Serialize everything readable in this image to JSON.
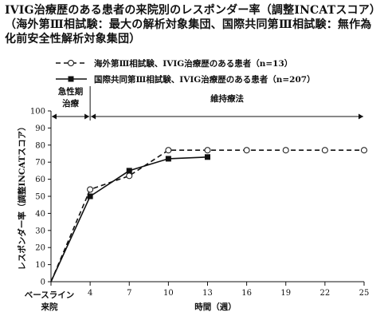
{
  "chart_data": {
    "type": "line",
    "title": "IVIG治療歴のある患者の来院別のレスポンダー率（調整INCATスコア）（海外第Ⅲ相試験：最大の解析対象集団、国際共同第Ⅲ相試験：無作為化前安全性解析対象集団）",
    "xlabel": "時間（週）",
    "ylabel": "レスポンダー率（調整INCATスコア）",
    "x_ticks": [
      "ベースライン\n来院",
      "4",
      "7",
      "10",
      "13",
      "16",
      "19",
      "22",
      "25"
    ],
    "x_tick_values": [
      0,
      4,
      7,
      10,
      13,
      16,
      19,
      22,
      25
    ],
    "xlim": [
      1,
      25
    ],
    "ylim": [
      0,
      100
    ],
    "y_ticks": [
      0,
      10,
      20,
      30,
      40,
      50,
      60,
      70,
      80,
      90,
      100
    ],
    "legend_position": "top-left",
    "phases": [
      {
        "label": "急性期\n治療",
        "x_start": 1,
        "x_end": 4
      },
      {
        "label": "維持療法",
        "x_start": 4,
        "x_end": 25
      }
    ],
    "series": [
      {
        "name": "海外第Ⅲ相試験、IVIG治療歴のある患者（n=13）",
        "style": "dashed",
        "marker": "open-circle",
        "color": "#111111",
        "points": [
          [
            1,
            0
          ],
          [
            4,
            54
          ],
          [
            7,
            62
          ],
          [
            10,
            77
          ],
          [
            13,
            77
          ],
          [
            16,
            77
          ],
          [
            19,
            77
          ],
          [
            22,
            77
          ],
          [
            25,
            77
          ]
        ]
      },
      {
        "name": "国際共同第Ⅲ相試験、IVIG治療歴のある患者（n=207）",
        "style": "solid",
        "marker": "filled-square",
        "color": "#111111",
        "points": [
          [
            1,
            0
          ],
          [
            4,
            50
          ],
          [
            7,
            65
          ],
          [
            10,
            72
          ],
          [
            13,
            73
          ]
        ]
      }
    ]
  }
}
